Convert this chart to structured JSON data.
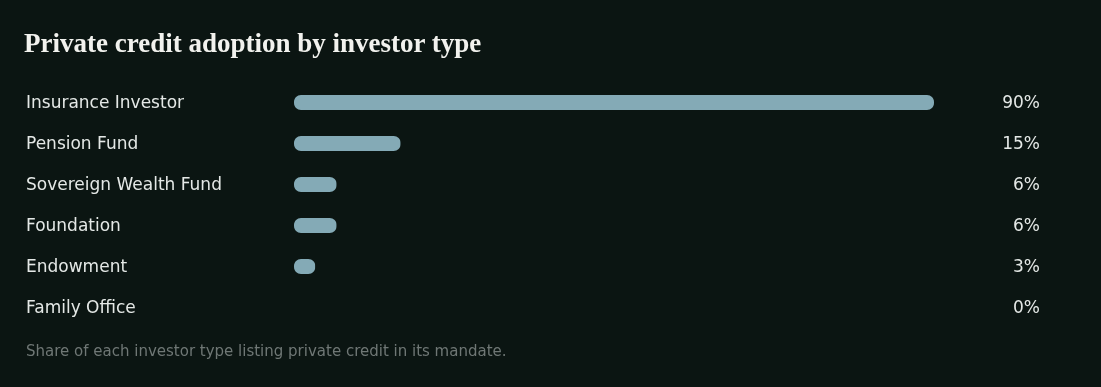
{
  "chart_data": {
    "type": "bar",
    "orientation": "horizontal",
    "title": "Private credit adoption by investor type",
    "categories": [
      "Insurance Investor",
      "Pension Fund",
      "Sovereign Wealth Fund",
      "Foundation",
      "Endowment",
      "Family Office"
    ],
    "values": [
      90,
      15,
      6,
      6,
      3,
      0
    ],
    "value_labels": [
      "90%",
      "15%",
      "6%",
      "6%",
      "3%",
      "0%"
    ],
    "color": "#84aab6",
    "annotations": [
      "Share of each investor type listing private credit in its mandate."
    ]
  }
}
